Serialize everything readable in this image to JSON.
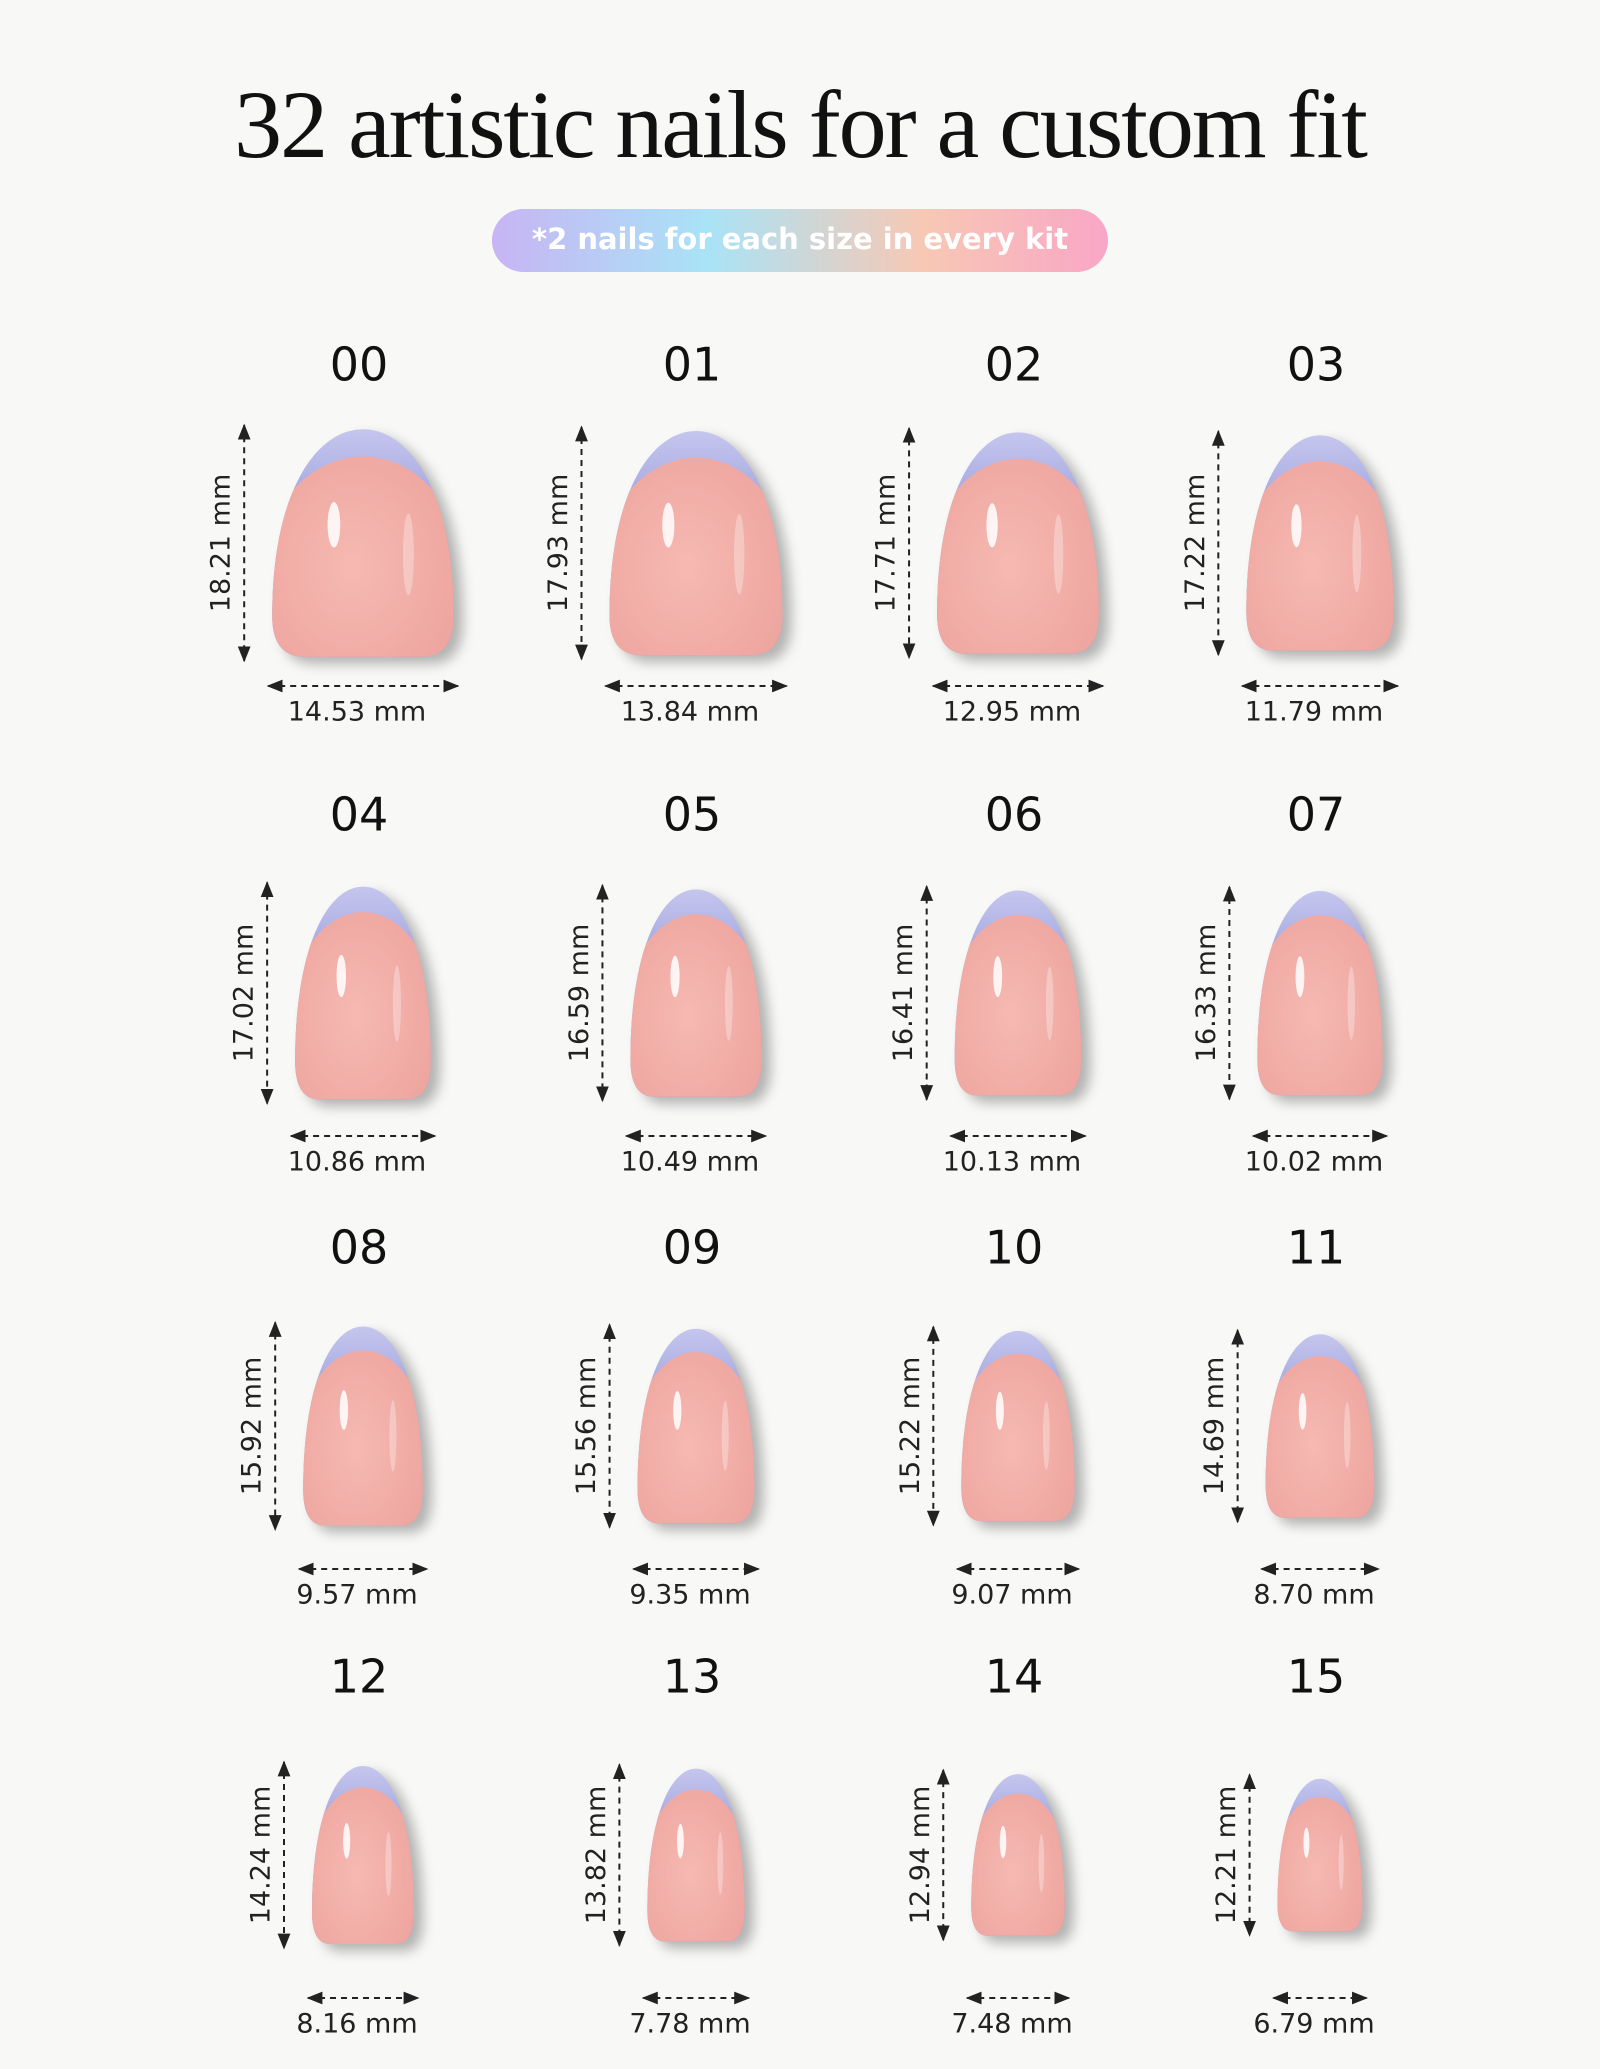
{
  "header": {
    "title": "32 artistic nails for a custom fit",
    "badge": "*2 nails for each size in every kit"
  },
  "nails": [
    {
      "size": "00",
      "length": "18.21 mm",
      "width": "14.53 mm"
    },
    {
      "size": "01",
      "length": "17.93 mm",
      "width": "13.84 mm"
    },
    {
      "size": "02",
      "length": "17.71 mm",
      "width": "12.95 mm"
    },
    {
      "size": "03",
      "length": "17.22 mm",
      "width": "11.79 mm"
    },
    {
      "size": "04",
      "length": "17.02 mm",
      "width": "10.86 mm"
    },
    {
      "size": "05",
      "length": "16.59 mm",
      "width": "10.49 mm"
    },
    {
      "size": "06",
      "length": "16.41 mm",
      "width": "10.13 mm"
    },
    {
      "size": "07",
      "length": "16.33 mm",
      "width": "10.02 mm"
    },
    {
      "size": "08",
      "length": "15.92 mm",
      "width": "9.57 mm"
    },
    {
      "size": "09",
      "length": "15.56 mm",
      "width": "9.35 mm"
    },
    {
      "size": "10",
      "length": "15.22 mm",
      "width": "9.07 mm"
    },
    {
      "size": "11",
      "length": "14.69 mm",
      "width": "8.70 mm"
    },
    {
      "size": "12",
      "length": "14.24 mm",
      "width": "8.16 mm"
    },
    {
      "size": "13",
      "length": "13.82 mm",
      "width": "7.78 mm"
    },
    {
      "size": "14",
      "length": "12.94 mm",
      "width": "7.48 mm"
    },
    {
      "size": "15",
      "length": "12.21 mm",
      "width": "6.79 mm"
    }
  ]
}
